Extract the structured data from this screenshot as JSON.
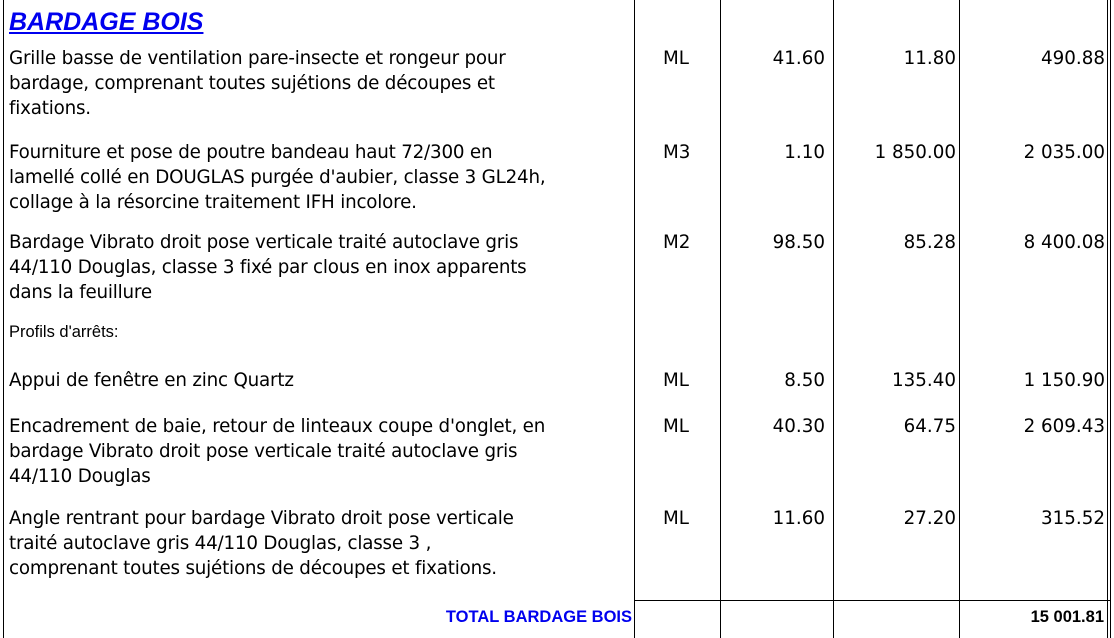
{
  "section": {
    "title": "BARDAGE BOIS",
    "subheading": "Profils d'arrêts:"
  },
  "rows": [
    {
      "desc": "Grille basse de ventilation pare-insecte et rongeur pour\nbardage, comprenant toutes sujétions de découpes et\nfixations.",
      "unit": "ML",
      "qty": "41.60",
      "price": "11.80",
      "total": "490.88"
    },
    {
      "desc": "Fourniture et pose de poutre bandeau haut  72/300 en\nlamellé collé en DOUGLAS purgée d'aubier, classe 3 GL24h,\ncollage à la résorcine traitement IFH incolore.",
      "unit": "M3",
      "qty": "1.10",
      "price": "1 850.00",
      "total": "2 035.00"
    },
    {
      "desc": "Bardage Vibrato droit pose verticale traité autoclave gris\n44/110  Douglas, classe 3  fixé par clous en inox apparents\ndans la feuillure",
      "unit": "M2",
      "qty": "98.50",
      "price": "85.28",
      "total": "8 400.08"
    },
    {
      "desc": "Appui de fenêtre en zinc Quartz",
      "unit": "ML",
      "qty": "8.50",
      "price": "135.40",
      "total": "1 150.90"
    },
    {
      "desc": "Encadrement de baie, retour de linteaux coupe d'onglet, en\nbardage Vibrato droit pose verticale traité autoclave gris\n44/110  Douglas",
      "unit": "ML",
      "qty": "40.30",
      "price": "64.75",
      "total": "2 609.43"
    },
    {
      "desc": "Angle rentrant pour bardage Vibrato droit pose verticale\ntraité autoclave gris  44/110  Douglas, classe 3 ,\n comprenant toutes sujétions de découpes et fixations.",
      "unit": "ML",
      "qty": "11.60",
      "price": "27.20",
      "total": "315.52"
    }
  ],
  "total": {
    "label": "TOTAL BARDAGE BOIS",
    "value": "15 001.81"
  },
  "colors": {
    "heading": "#0000ee",
    "text": "#000000"
  }
}
